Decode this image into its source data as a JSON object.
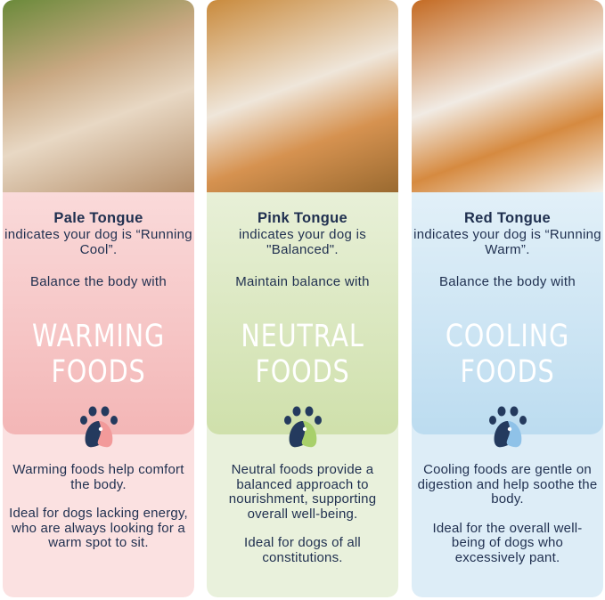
{
  "colors": {
    "text": "#1f2f4f",
    "paw": "#243a5e",
    "pale": "#f4b9b9",
    "pink": "#d3e2b2",
    "red": "#bfdef1"
  },
  "columns": [
    {
      "photo": "pale-tongue-dog-photo",
      "title": "Pale Tongue",
      "subtitle": "indicates your dog is “Running Cool”.",
      "balance": "Balance the body with",
      "food_line1": "WARMING",
      "food_line2": "FOODS",
      "paragraph1": "Warming foods help comfort the body.",
      "paragraph2": "Ideal for dogs lacking energy, who are always looking for a warm spot to sit."
    },
    {
      "photo": "pink-tongue-dog-photo",
      "title": "Pink Tongue",
      "subtitle": "indicates your dog is \"Balanced\".",
      "balance": "Maintain balance with",
      "food_line1": "NEUTRAL",
      "food_line2": "FOODS",
      "paragraph1": "Neutral foods provide a balanced approach to nourishment, supporting overall well-being.",
      "paragraph2": "Ideal for dogs of all constitutions."
    },
    {
      "photo": "red-tongue-dog-photo",
      "title": "Red Tongue",
      "subtitle": "indicates your dog is “Running Warm”.",
      "balance": "Balance the body with",
      "food_line1": "COOLING",
      "food_line2": "FOODS",
      "paragraph1": "Cooling foods are gentle on digestion and help soothe the body.",
      "paragraph2": "Ideal for the overall well-being of dogs who excessively pant."
    }
  ]
}
